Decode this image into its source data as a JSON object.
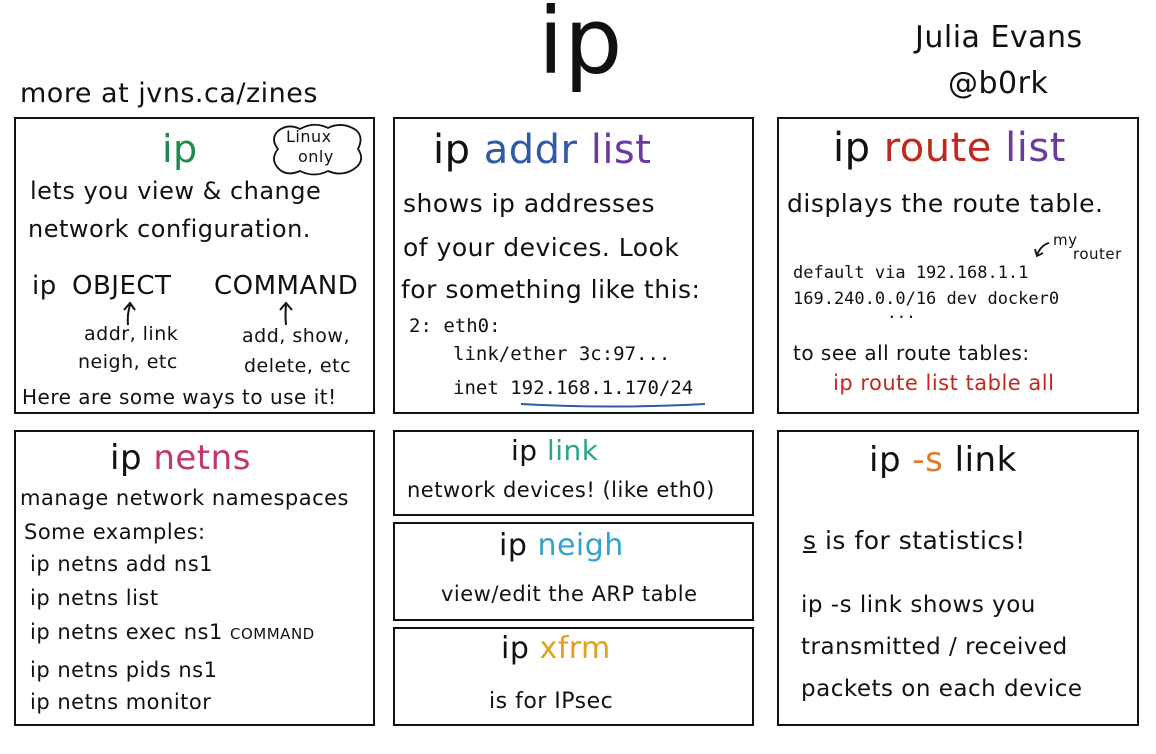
{
  "header": {
    "big_title": "ip",
    "author_name": "Julia Evans",
    "author_handle": "@b0rk",
    "more_link": "more at jvns.ca/zines"
  },
  "colors": {
    "green": "#1f8a4c",
    "blue": "#2f5aa8",
    "purple": "#6b3aa0",
    "red": "#c0281e",
    "pink": "#c2356e",
    "teal": "#2aa58a",
    "cyan": "#35a3c9",
    "orange": "#e5a01a",
    "underline": "#2f5aa8"
  },
  "panels": {
    "intro": {
      "title": "ip",
      "badge_line1": "Linux",
      "badge_line2": "only",
      "desc1": "lets you view & change",
      "desc2": "network configuration.",
      "usage_word1": "ip",
      "usage_word2": "OBJECT",
      "usage_word3": "COMMAND",
      "object_note1": "addr, link",
      "object_note2": "neigh, etc",
      "command_note1": "add, show,",
      "command_note2": "delete, etc",
      "footer": "Here are some ways to use it!"
    },
    "addr": {
      "title_ip": "ip",
      "title_addr": "addr",
      "title_list": "list",
      "line1": "shows ip addresses",
      "line2": "of your devices. Look",
      "line3": "for something like this:",
      "code1": "2: eth0:",
      "code2": "link/ether 3c:97...",
      "code3_prefix": "inet ",
      "code3_ip": "192.168.1.170",
      "code3_suffix": "/24"
    },
    "route": {
      "title_ip": "ip",
      "title_route": "route",
      "title_list": "list",
      "desc": "displays the route table.",
      "note_my": "my",
      "note_router": "router",
      "code1": "default via 192.168.1.1",
      "code2": "169.240.0.0/16 dev docker0",
      "ellipsis": "...",
      "all_label": "to see all route tables:",
      "all_cmd": "ip route list table all"
    },
    "netns": {
      "title_ip": "ip",
      "title_netns": "netns",
      "desc": "manage network namespaces",
      "examples_label": "Some examples:",
      "ex1": "ip netns add ns1",
      "ex2": "ip netns list",
      "ex3": "ip netns exec ns1",
      "ex3_command": "COMMAND",
      "ex4": "ip netns pids ns1",
      "ex5": "ip netns monitor"
    },
    "link": {
      "title_ip": "ip",
      "title_link": "link",
      "desc": "network devices! (like eth0)"
    },
    "neigh": {
      "title_ip": "ip",
      "title_neigh": "neigh",
      "desc": "view/edit the ARP table"
    },
    "xfrm": {
      "title_ip": "ip",
      "title_xfrm": "xfrm",
      "desc": "is for IPsec"
    },
    "stats": {
      "title_ip": "ip",
      "title_flag": "-s",
      "title_link": "link",
      "s_letter": "s",
      "s_rest": "is for statistics!",
      "line1": "ip -s link shows you",
      "line2": "transmitted / received",
      "line3": "packets on each device"
    }
  }
}
